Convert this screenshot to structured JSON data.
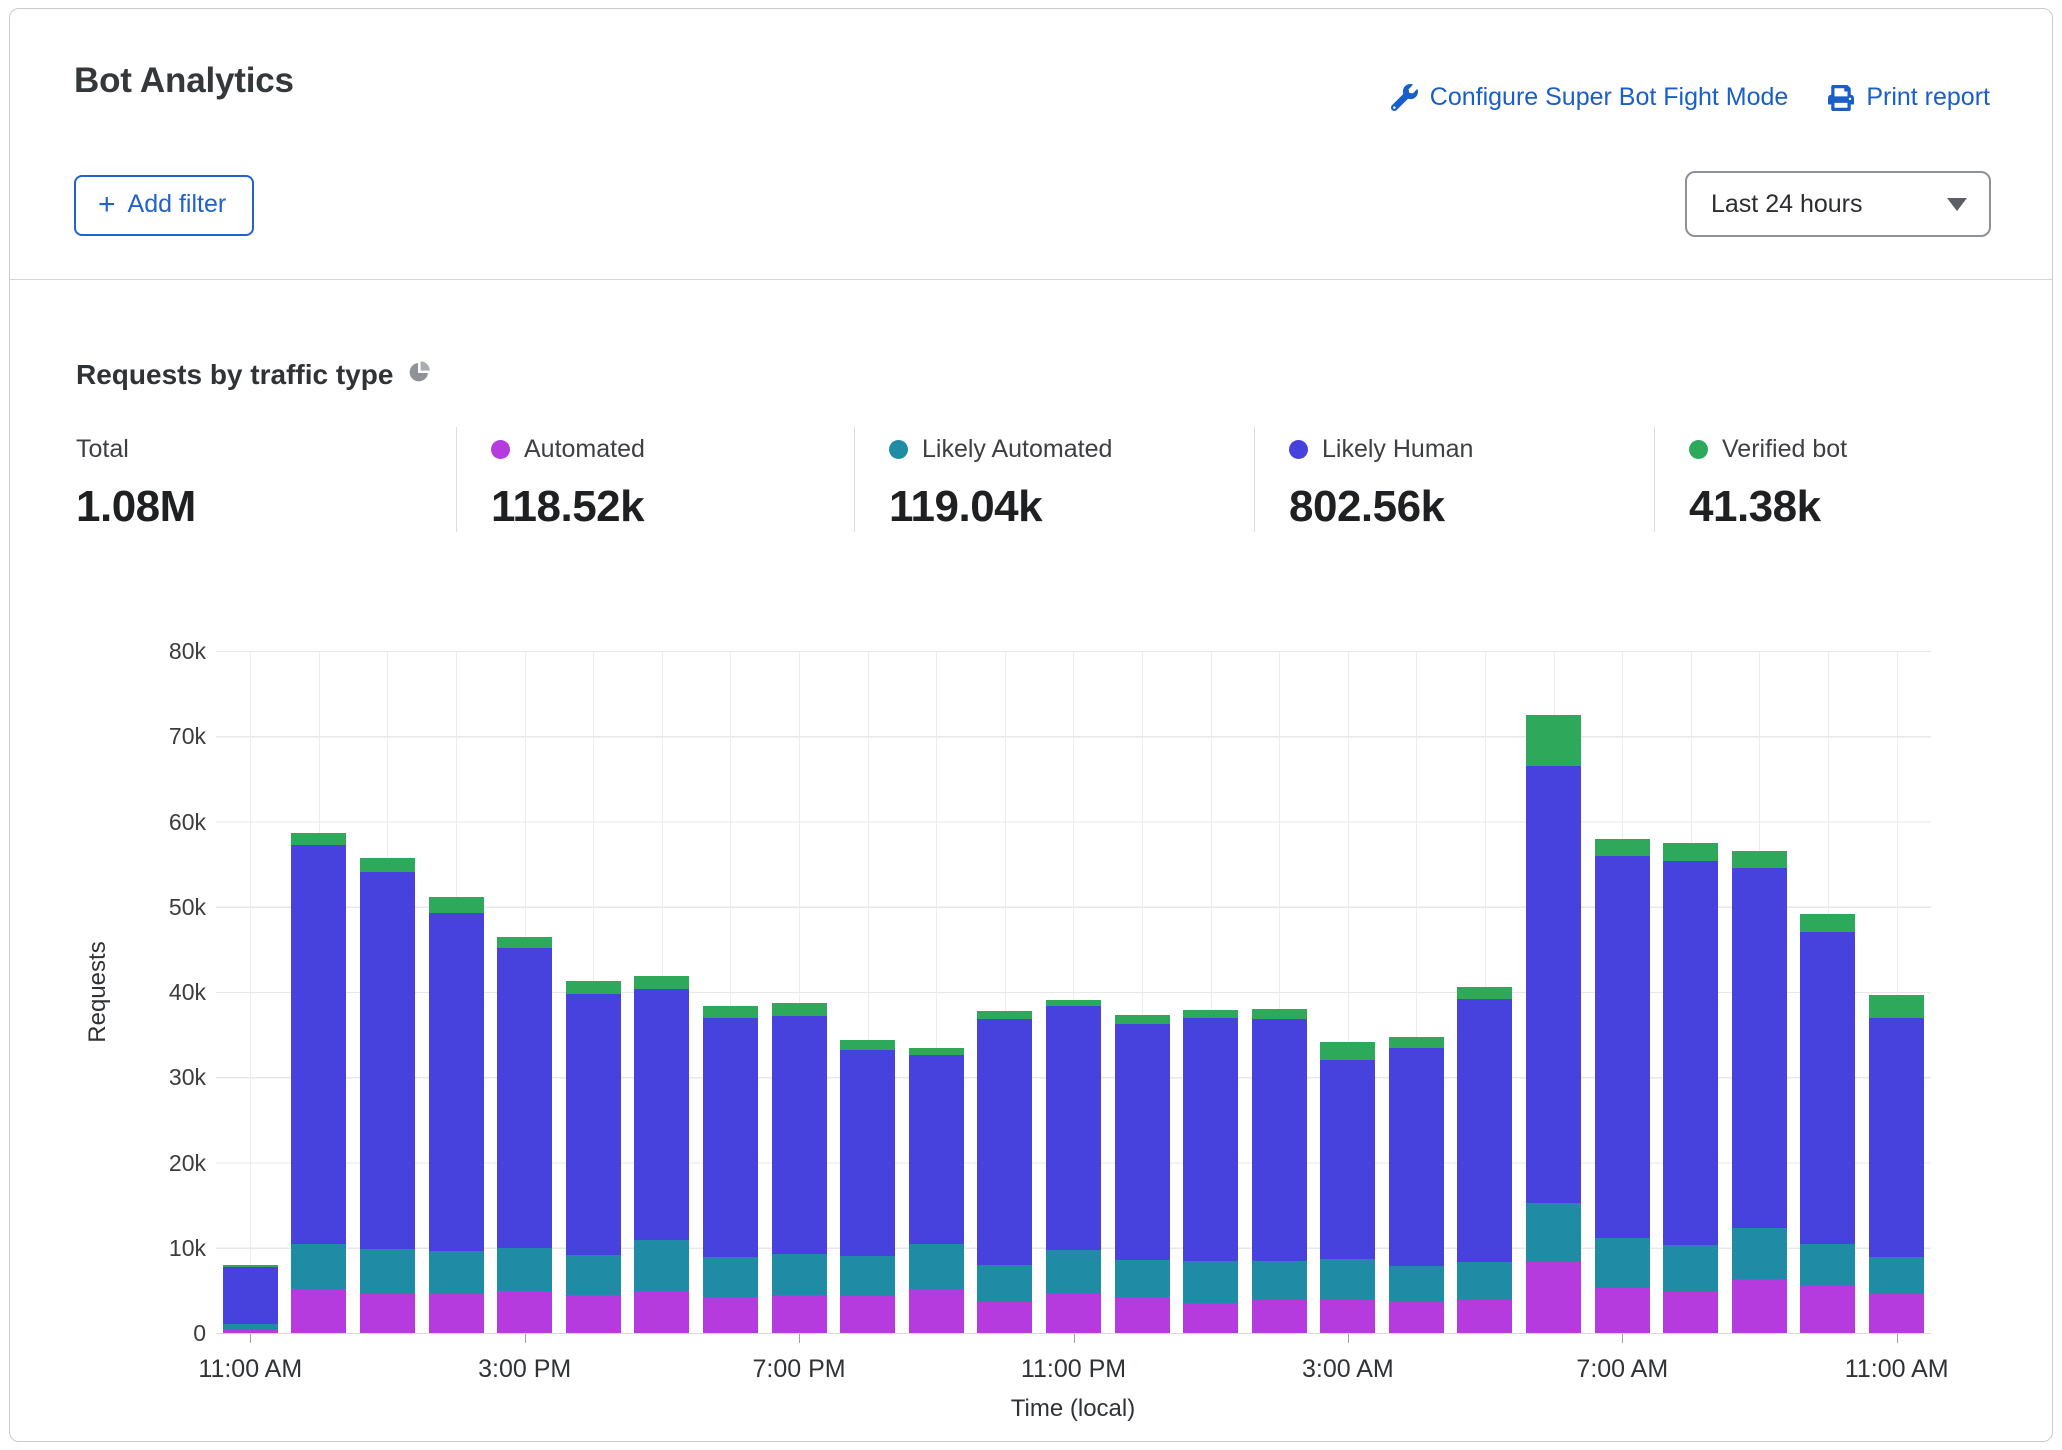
{
  "header": {
    "title": "Bot Analytics",
    "configure_link": "Configure Super Bot Fight Mode",
    "print_link": "Print report",
    "add_filter_plus": "+",
    "add_filter_label": "Add filter",
    "time_range_value": "Last 24 hours"
  },
  "section": {
    "title": "Requests by traffic type"
  },
  "stats": [
    {
      "key": "total",
      "label": "Total",
      "value": "1.08M"
    },
    {
      "key": "automated",
      "label": "Automated",
      "value": "118.52k"
    },
    {
      "key": "likely_automated",
      "label": "Likely Automated",
      "value": "119.04k"
    },
    {
      "key": "likely_human",
      "label": "Likely Human",
      "value": "802.56k"
    },
    {
      "key": "verified_bot",
      "label": "Verified bot",
      "value": "41.38k"
    }
  ],
  "colors": {
    "automated": "#b53bde",
    "likely_automated": "#1f8ba4",
    "likely_human": "#4742de",
    "verified_bot": "#2ea95c",
    "link_blue": "#1a5fc8"
  },
  "chart_data": {
    "type": "bar",
    "stacked": true,
    "title": "Requests by traffic type",
    "xlabel": "Time (local)",
    "ylabel": "Requests",
    "ylim": [
      0,
      80000
    ],
    "grid": true,
    "units_note": "series values are thousands (k) of requests per hour; 25 hourly bars from 11:00 AM to 11:00 AM",
    "ytick_labels": [
      "0",
      "10k",
      "20k",
      "30k",
      "40k",
      "50k",
      "60k",
      "70k",
      "80k"
    ],
    "xtick_labels": [
      "11:00 AM",
      "3:00 PM",
      "7:00 PM",
      "11:00 PM",
      "3:00 AM",
      "7:00 AM",
      "11:00 AM"
    ],
    "xtick_positions": [
      0,
      4,
      8,
      12,
      16,
      20,
      24
    ],
    "series": [
      {
        "name": "Automated",
        "color_key": "automated",
        "values": [
          0.4,
          5.2,
          4.6,
          4.6,
          4.9,
          4.5,
          4.9,
          4.2,
          4.5,
          4.3,
          5.2,
          3.6,
          4.7,
          4.2,
          3.5,
          3.9,
          3.9,
          3.6,
          3.9,
          8.3,
          5.3,
          4.8,
          6.3,
          5.6,
          4.6
        ]
      },
      {
        "name": "Likely Automated",
        "color_key": "likely_automated",
        "values": [
          0.7,
          5.2,
          5.2,
          5.0,
          5.1,
          4.7,
          6.0,
          4.7,
          4.8,
          4.7,
          5.2,
          4.4,
          5.0,
          4.4,
          4.9,
          4.6,
          4.8,
          4.3,
          4.4,
          6.9,
          5.9,
          5.5,
          6.0,
          4.9,
          4.3
        ]
      },
      {
        "name": "Likely Human",
        "color_key": "likely_human",
        "values": [
          6.7,
          46.9,
          44.3,
          39.7,
          35.2,
          30.6,
          29.4,
          28.1,
          27.9,
          24.2,
          22.2,
          28.8,
          28.7,
          27.6,
          28.6,
          28.3,
          23.3,
          25.5,
          30.9,
          51.3,
          44.8,
          45.1,
          42.3,
          36.5,
          28.1
        ]
      },
      {
        "name": "Verified bot",
        "color_key": "verified_bot",
        "values": [
          0.2,
          1.3,
          1.6,
          1.8,
          1.3,
          1.5,
          1.6,
          1.4,
          1.5,
          1.2,
          0.8,
          1.0,
          0.7,
          1.1,
          0.9,
          1.2,
          2.1,
          1.3,
          1.4,
          6.0,
          2.0,
          2.1,
          1.9,
          2.1,
          2.6
        ]
      }
    ]
  }
}
